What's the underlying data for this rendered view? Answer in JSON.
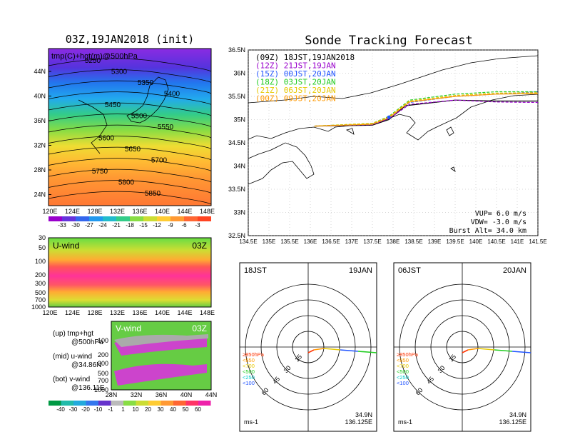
{
  "colors": {
    "purple": "#9900cc",
    "blue": "#2255ff",
    "green": "#22cc22",
    "yellow": "#e6c800",
    "orange": "#ff9900",
    "black": "#000000"
  },
  "map500": {
    "title": "03Z,19JAN2018 (init)",
    "label": "tmp(C)+hgt(m)@500hPa",
    "y_ticks": [
      "44N",
      "40N",
      "36N",
      "32N",
      "28N",
      "24N"
    ],
    "x_ticks": [
      "120E",
      "124E",
      "128E",
      "132E",
      "136E",
      "140E",
      "144E",
      "148E"
    ],
    "contours": [
      "5250",
      "5300",
      "5350",
      "5400",
      "5450",
      "5500",
      "5550",
      "5600",
      "5650",
      "5700",
      "5750",
      "5800",
      "5850"
    ],
    "colorbar": [
      "-33",
      "-30",
      "-27",
      "-24",
      "-21",
      "-18",
      "-15",
      "-12",
      "-9",
      "-6",
      "-3"
    ]
  },
  "uwind": {
    "label": "U-wind",
    "time": "03Z",
    "y_ticks": [
      "30",
      "50",
      "100",
      "200",
      "300",
      "500",
      "700",
      "1000"
    ],
    "x_ticks": [
      "120E",
      "124E",
      "128E",
      "132E",
      "136E",
      "140E",
      "144E",
      "148E"
    ]
  },
  "vwind": {
    "label": "V-wind",
    "time": "03Z",
    "y_ticks": [
      "100",
      "200",
      "300",
      "500",
      "700",
      "1000"
    ],
    "x_ticks": [
      "28N",
      "32N",
      "36N",
      "40N",
      "44N"
    ],
    "colorbar": [
      "-40",
      "-30",
      "-20",
      "-10",
      "-1",
      "1",
      "10",
      "20",
      "30",
      "40",
      "50",
      "60"
    ]
  },
  "legend": {
    "l1a": "(up) tmp+hgt",
    "l1b": "@500hPa",
    "l2a": "(mid) u-wind",
    "l2b": "@34.86N",
    "l3a": "(bot) v-wind",
    "l3b": "@136.11E"
  },
  "track": {
    "title": "Sonde Tracking Forecast",
    "lat_ticks": [
      "36.5N",
      "36N",
      "35.5N",
      "35N",
      "34.5N",
      "34N",
      "33.5N",
      "33N",
      "32.5N"
    ],
    "lon_ticks": [
      "134.5E",
      "135E",
      "135.5E",
      "136E",
      "136.5E",
      "137E",
      "137.5E",
      "138E",
      "138.5E",
      "139E",
      "139.5E",
      "140E",
      "140.5E",
      "141E",
      "141.5E"
    ],
    "launches": [
      {
        "label": "(09Z)  18JST,19JAN2018",
        "color": "#000000"
      },
      {
        "label": "(12Z)  21JST,19JAN",
        "color": "#9900cc"
      },
      {
        "label": "(15Z)  00JST,20JAN",
        "color": "#2255ff"
      },
      {
        "label": "(18Z)  03JST,20JAN",
        "color": "#22cc22"
      },
      {
        "label": "(21Z)  06JST,20JAN",
        "color": "#e6c800"
      },
      {
        "label": "(00Z)  09JST,20JAN",
        "color": "#ff9900"
      }
    ],
    "vup": "VUP=  6.0 m/s",
    "vdw": "VDW= -3.0 m/s",
    "burst": "Burst Alt= 34.0 km"
  },
  "polar_left": {
    "time": "18JST",
    "date": "19JAN",
    "rings": [
      "15",
      "30",
      "45",
      "60"
    ],
    "lat": "34.9N",
    "lon": "136.125E",
    "unit": "ms-1"
  },
  "polar_right": {
    "time": "06JST",
    "date": "20JAN",
    "rings": [
      "15",
      "30",
      "45",
      "60"
    ],
    "lat": "34.9N",
    "lon": "136.125E",
    "unit": "ms-1"
  },
  "pressure_legend": [
    {
      "label": "≥850hPa",
      "color": "#ff3300"
    },
    {
      "label": "<850",
      "color": "#ff9900"
    },
    {
      "label": "<700",
      "color": "#e6c800"
    },
    {
      "label": "<500",
      "color": "#22cc22"
    },
    {
      "label": "<250",
      "color": "#00cccc"
    },
    {
      "label": "<100",
      "color": "#2255ff"
    }
  ],
  "chart_data": [
    {
      "type": "heatmap",
      "title": "03Z,19JAN2018 (init)",
      "subtitle": "tmp(C)+hgt(m)@500hPa",
      "contour_levels": [
        5250,
        5300,
        5350,
        5400,
        5450,
        5500,
        5550,
        5600,
        5650,
        5700,
        5750,
        5800,
        5850
      ],
      "colorbar": [
        -33,
        -30,
        -27,
        -24,
        -21,
        -18,
        -15,
        -12,
        -9,
        -6,
        -3
      ]
    },
    {
      "type": "heatmap",
      "title": "U-wind",
      "subtitle": "03Z",
      "y_ticks": [
        30,
        50,
        100,
        200,
        300,
        500,
        700,
        1000
      ]
    },
    {
      "type": "heatmap",
      "title": "V-wind",
      "subtitle": "03Z",
      "y_ticks": [
        100,
        200,
        300,
        500,
        700,
        1000
      ],
      "colorbar": [
        -40,
        -30,
        -20,
        -10,
        -1,
        1,
        10,
        20,
        30,
        40,
        50,
        60
      ]
    },
    {
      "type": "line",
      "title": "Sonde Tracking Forecast",
      "xlim": [
        134.5,
        141.5
      ],
      "ylim": [
        32.5,
        36.5
      ],
      "series": [
        {
          "name": "(09Z)  18JST,19JAN2018",
          "x": [
            136.1,
            137.5,
            137.9,
            138.3,
            139.5,
            140.5,
            141.5
          ],
          "y": [
            34.86,
            34.88,
            35.0,
            35.3,
            35.42,
            35.4,
            35.4
          ]
        },
        {
          "name": "(12Z)  21JST,19JAN",
          "x": [
            136.1,
            137.5,
            137.9,
            138.4,
            139.5,
            140.5,
            141.5
          ],
          "y": [
            34.86,
            34.89,
            35.02,
            35.33,
            35.42,
            35.38,
            35.37
          ]
        },
        {
          "name": "(15Z)  00JST,20JAN",
          "x": [
            136.1,
            137.5,
            137.9,
            138.4,
            139.5,
            140.5,
            141.5
          ],
          "y": [
            34.86,
            34.9,
            35.05,
            35.37,
            35.5,
            35.55,
            35.6
          ]
        },
        {
          "name": "(18Z)  03JST,20JAN",
          "x": [
            136.1,
            137.5,
            137.9,
            138.4,
            139.5,
            140.5,
            141.5
          ],
          "y": [
            34.86,
            34.92,
            35.07,
            35.42,
            35.55,
            35.6,
            35.6
          ]
        },
        {
          "name": "(21Z)  06JST,20JAN",
          "x": [
            136.1,
            137.5,
            137.9,
            138.4,
            139.5,
            140.5,
            141.5
          ],
          "y": [
            34.86,
            34.92,
            35.06,
            35.4,
            35.52,
            35.57,
            35.58
          ]
        },
        {
          "name": "(00Z)  09JST,20JAN",
          "x": [
            136.1,
            137.5,
            137.9,
            138.4,
            139.5,
            140.5,
            141.5
          ],
          "y": [
            34.86,
            34.9,
            35.04,
            35.38,
            35.5,
            35.55,
            35.56
          ]
        }
      ]
    }
  ]
}
